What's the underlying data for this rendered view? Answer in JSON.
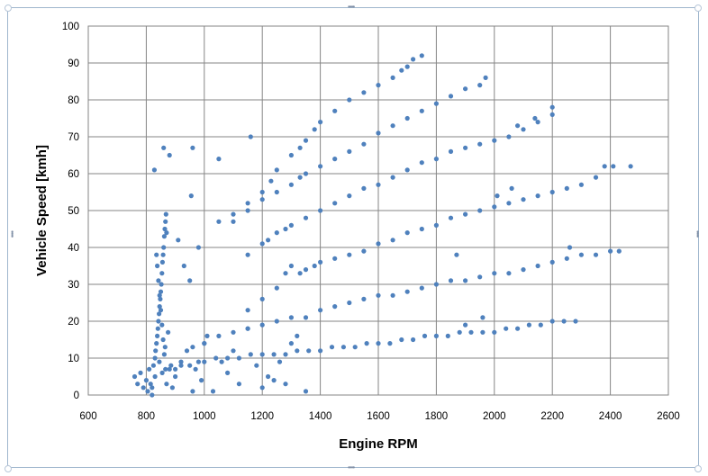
{
  "chart_data": {
    "type": "scatter",
    "title": "",
    "xlabel": "Engine RPM",
    "ylabel": "Vehicle Speed [kmh]",
    "xlim": [
      600,
      2600
    ],
    "ylim": [
      0,
      100
    ],
    "xticks": [
      600,
      800,
      1000,
      1200,
      1400,
      1600,
      1800,
      2000,
      2200,
      2400,
      2600
    ],
    "yticks": [
      0,
      10,
      20,
      30,
      40,
      50,
      60,
      70,
      80,
      90,
      100
    ],
    "grid": true,
    "legend": "none",
    "marker_color": "#4f81bd",
    "series": [
      {
        "points": [
          [
            760,
            5
          ],
          [
            770,
            3
          ],
          [
            780,
            6
          ],
          [
            790,
            2
          ],
          [
            800,
            4
          ],
          [
            805,
            1
          ],
          [
            810,
            7
          ],
          [
            815,
            3
          ],
          [
            820,
            0
          ],
          [
            825,
            8
          ],
          [
            830,
            10
          ],
          [
            832,
            12
          ],
          [
            835,
            14
          ],
          [
            838,
            16
          ],
          [
            840,
            18
          ],
          [
            842,
            20
          ],
          [
            844,
            22
          ],
          [
            846,
            24
          ],
          [
            848,
            26
          ],
          [
            850,
            28
          ],
          [
            852,
            30
          ],
          [
            854,
            33
          ],
          [
            856,
            36
          ],
          [
            858,
            38
          ],
          [
            860,
            40
          ],
          [
            862,
            43
          ],
          [
            864,
            45
          ],
          [
            866,
            47
          ],
          [
            868,
            49
          ],
          [
            870,
            44
          ],
          [
            835,
            38
          ],
          [
            838,
            35
          ],
          [
            842,
            31
          ],
          [
            846,
            27
          ],
          [
            850,
            23
          ],
          [
            854,
            19
          ],
          [
            858,
            15
          ],
          [
            862,
            11
          ],
          [
            866,
            7
          ],
          [
            870,
            3
          ],
          [
            828,
            61
          ],
          [
            860,
            67
          ],
          [
            880,
            65
          ],
          [
            960,
            67
          ],
          [
            955,
            54
          ],
          [
            910,
            42
          ],
          [
            930,
            35
          ],
          [
            950,
            31
          ],
          [
            980,
            40
          ],
          [
            1050,
            64
          ],
          [
            820,
            2
          ],
          [
            830,
            5
          ],
          [
            845,
            9
          ],
          [
            855,
            6
          ],
          [
            865,
            13
          ],
          [
            875,
            17
          ],
          [
            885,
            8
          ],
          [
            890,
            2
          ],
          [
            900,
            5
          ],
          [
            920,
            9
          ],
          [
            940,
            12
          ],
          [
            960,
            1
          ],
          [
            970,
            7
          ],
          [
            990,
            4
          ],
          [
            1000,
            14
          ],
          [
            1010,
            16
          ],
          [
            1030,
            1
          ],
          [
            1060,
            9
          ],
          [
            1080,
            6
          ],
          [
            1100,
            12
          ],
          [
            1120,
            3
          ],
          [
            1150,
            18
          ],
          [
            1180,
            8
          ],
          [
            1200,
            2
          ],
          [
            1220,
            5
          ],
          [
            1240,
            4
          ],
          [
            1260,
            9
          ],
          [
            1280,
            3
          ],
          [
            1300,
            14
          ],
          [
            1320,
            16
          ],
          [
            1350,
            1
          ],
          [
            880,
            7
          ],
          [
            900,
            7
          ],
          [
            920,
            8
          ],
          [
            950,
            8
          ],
          [
            980,
            9
          ],
          [
            1000,
            9
          ],
          [
            1040,
            10
          ],
          [
            1080,
            10
          ],
          [
            1120,
            10
          ],
          [
            1160,
            11
          ],
          [
            1200,
            11
          ],
          [
            1240,
            11
          ],
          [
            1280,
            11
          ],
          [
            1320,
            12
          ],
          [
            1360,
            12
          ],
          [
            1400,
            12
          ],
          [
            1440,
            13
          ],
          [
            1480,
            13
          ],
          [
            1520,
            13
          ],
          [
            1560,
            14
          ],
          [
            1600,
            14
          ],
          [
            1640,
            14
          ],
          [
            1680,
            15
          ],
          [
            1720,
            15
          ],
          [
            1760,
            16
          ],
          [
            1800,
            16
          ],
          [
            1840,
            16
          ],
          [
            1880,
            17
          ],
          [
            1920,
            17
          ],
          [
            1960,
            17
          ],
          [
            2000,
            17
          ],
          [
            2040,
            18
          ],
          [
            2080,
            18
          ],
          [
            2120,
            19
          ],
          [
            2160,
            19
          ],
          [
            2200,
            20
          ],
          [
            2240,
            20
          ],
          [
            2280,
            20
          ],
          [
            1900,
            19
          ],
          [
            1960,
            21
          ],
          [
            960,
            13
          ],
          [
            1000,
            14
          ],
          [
            1050,
            16
          ],
          [
            1100,
            17
          ],
          [
            1150,
            18
          ],
          [
            1200,
            19
          ],
          [
            1250,
            20
          ],
          [
            1300,
            21
          ],
          [
            1350,
            21
          ],
          [
            1400,
            23
          ],
          [
            1450,
            24
          ],
          [
            1500,
            25
          ],
          [
            1550,
            26
          ],
          [
            1600,
            27
          ],
          [
            1650,
            27
          ],
          [
            1700,
            28
          ],
          [
            1750,
            29
          ],
          [
            1800,
            30
          ],
          [
            1850,
            31
          ],
          [
            1900,
            31
          ],
          [
            1950,
            32
          ],
          [
            2000,
            33
          ],
          [
            2050,
            33
          ],
          [
            2100,
            34
          ],
          [
            2150,
            35
          ],
          [
            2200,
            36
          ],
          [
            2250,
            37
          ],
          [
            2300,
            38
          ],
          [
            2350,
            38
          ],
          [
            2400,
            39
          ],
          [
            2430,
            39
          ],
          [
            2260,
            40
          ],
          [
            1150,
            23
          ],
          [
            1200,
            26
          ],
          [
            1250,
            29
          ],
          [
            1280,
            33
          ],
          [
            1300,
            35
          ],
          [
            1330,
            33
          ],
          [
            1350,
            34
          ],
          [
            1380,
            35
          ],
          [
            1400,
            36
          ],
          [
            1450,
            37
          ],
          [
            1500,
            38
          ],
          [
            1550,
            39
          ],
          [
            1600,
            41
          ],
          [
            1650,
            42
          ],
          [
            1700,
            44
          ],
          [
            1750,
            45
          ],
          [
            1800,
            46
          ],
          [
            1850,
            48
          ],
          [
            1900,
            49
          ],
          [
            1950,
            50
          ],
          [
            2000,
            51
          ],
          [
            2050,
            52
          ],
          [
            2100,
            53
          ],
          [
            2150,
            54
          ],
          [
            2200,
            55
          ],
          [
            2250,
            56
          ],
          [
            2300,
            57
          ],
          [
            2350,
            59
          ],
          [
            2380,
            62
          ],
          [
            2410,
            62
          ],
          [
            2470,
            62
          ],
          [
            1870,
            38
          ],
          [
            2010,
            54
          ],
          [
            2060,
            56
          ],
          [
            1150,
            38
          ],
          [
            1200,
            41
          ],
          [
            1220,
            42
          ],
          [
            1250,
            44
          ],
          [
            1280,
            45
          ],
          [
            1300,
            46
          ],
          [
            1350,
            48
          ],
          [
            1400,
            50
          ],
          [
            1450,
            52
          ],
          [
            1500,
            54
          ],
          [
            1550,
            56
          ],
          [
            1600,
            57
          ],
          [
            1650,
            59
          ],
          [
            1700,
            61
          ],
          [
            1750,
            63
          ],
          [
            1800,
            64
          ],
          [
            1850,
            66
          ],
          [
            1900,
            67
          ],
          [
            1950,
            68
          ],
          [
            2000,
            69
          ],
          [
            2050,
            70
          ],
          [
            2100,
            72
          ],
          [
            2150,
            74
          ],
          [
            2200,
            76
          ],
          [
            2200,
            78
          ],
          [
            2140,
            75
          ],
          [
            2080,
            73
          ],
          [
            1100,
            47
          ],
          [
            1150,
            50
          ],
          [
            1200,
            53
          ],
          [
            1250,
            55
          ],
          [
            1300,
            57
          ],
          [
            1350,
            60
          ],
          [
            1400,
            62
          ],
          [
            1450,
            64
          ],
          [
            1500,
            66
          ],
          [
            1550,
            68
          ],
          [
            1600,
            71
          ],
          [
            1650,
            73
          ],
          [
            1700,
            75
          ],
          [
            1750,
            77
          ],
          [
            1800,
            79
          ],
          [
            1850,
            81
          ],
          [
            1900,
            83
          ],
          [
            1950,
            84
          ],
          [
            1970,
            86
          ],
          [
            1330,
            59
          ],
          [
            1050,
            47
          ],
          [
            1100,
            49
          ],
          [
            1150,
            52
          ],
          [
            1200,
            55
          ],
          [
            1230,
            58
          ],
          [
            1250,
            61
          ],
          [
            1300,
            65
          ],
          [
            1330,
            67
          ],
          [
            1350,
            69
          ],
          [
            1380,
            72
          ],
          [
            1400,
            74
          ],
          [
            1450,
            77
          ],
          [
            1500,
            80
          ],
          [
            1550,
            82
          ],
          [
            1600,
            84
          ],
          [
            1650,
            86
          ],
          [
            1680,
            88
          ],
          [
            1700,
            89
          ],
          [
            1720,
            91
          ],
          [
            1750,
            92
          ],
          [
            1160,
            70
          ]
        ]
      }
    ]
  }
}
